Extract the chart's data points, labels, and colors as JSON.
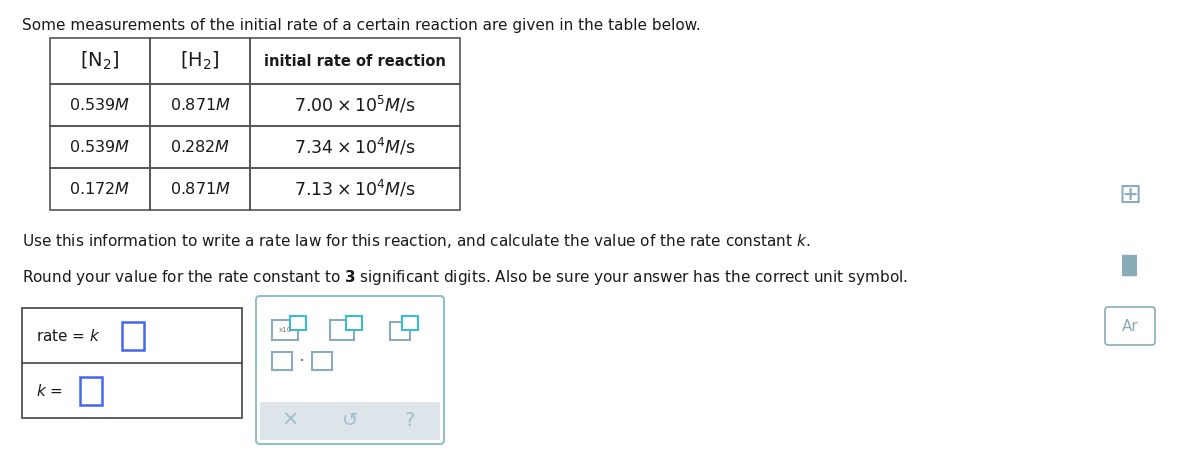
{
  "title_text": "Some measurements of the initial rate of a certain reaction are given in the table below.",
  "rate_rows": [
    [
      "0.539",
      "0.871",
      "7.00",
      "5"
    ],
    [
      "0.539",
      "0.282",
      "7.34",
      "4"
    ],
    [
      "0.172",
      "0.871",
      "7.13",
      "4"
    ]
  ],
  "info_text": "Use this information to write a rate law for this reaction, and calculate the value of the rate constant ",
  "round_text": "Round your value for the rate constant to ",
  "round_suffix": " significant digits. Also be sure your answer has the correct unit symbol.",
  "bg_color": "#ffffff",
  "text_color": "#1a1a1a",
  "table_line_color": "#555555",
  "input_box_color": "#4466ee",
  "toolbar_border": "#92bfcc",
  "toolbar_icon_gray": "#8aacb8",
  "toolbar_icon_cyan": "#3bbccc",
  "toolbar_btn_color": "#9bbfcc",
  "toolbar_gray_bg": "#dde4ea",
  "right_icon_color": "#8aacb8"
}
